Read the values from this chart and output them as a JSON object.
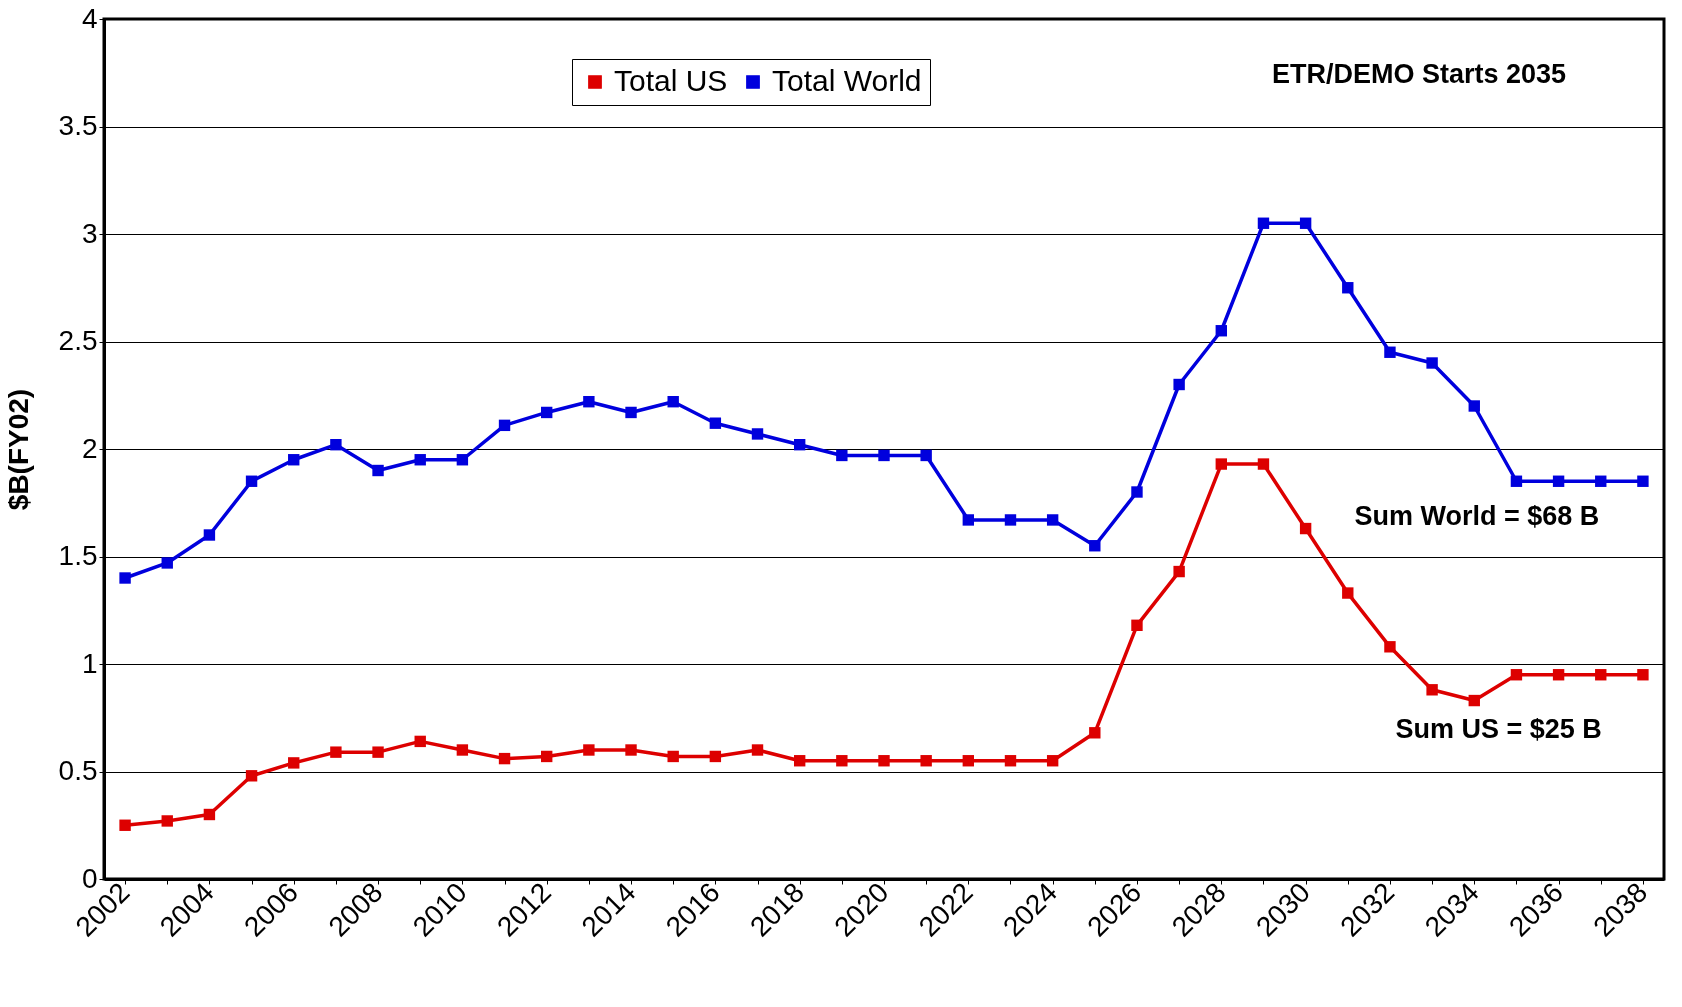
{
  "chart_data": {
    "type": "line",
    "ylabel": "$B(FY02)",
    "categories": [
      "2002",
      null,
      "2004",
      null,
      "2006",
      null,
      "2008",
      null,
      "2010",
      null,
      "2012",
      null,
      "2014",
      null,
      "2016",
      null,
      "2018",
      null,
      "2020",
      null,
      "2022",
      null,
      "2024",
      null,
      "2026",
      null,
      "2028",
      null,
      "2030",
      null,
      "2032",
      null,
      "2034",
      null,
      "2036",
      null,
      "2038"
    ],
    "series": [
      {
        "name": "Total US",
        "color": "#dd0000",
        "values": [
          0.25,
          0.27,
          0.3,
          0.48,
          0.54,
          0.59,
          0.59,
          0.64,
          0.6,
          0.56,
          0.57,
          0.6,
          0.6,
          0.57,
          0.57,
          0.6,
          0.55,
          0.55,
          0.55,
          0.55,
          0.55,
          0.55,
          0.55,
          0.68,
          1.18,
          1.43,
          1.93,
          1.93,
          1.63,
          1.33,
          1.08,
          0.88,
          0.83,
          0.95,
          0.95,
          0.95,
          0.95
        ]
      },
      {
        "name": "Total World",
        "color": "#0000dd",
        "values": [
          1.4,
          1.47,
          1.6,
          1.85,
          1.95,
          2.02,
          1.9,
          1.95,
          1.95,
          2.11,
          2.17,
          2.22,
          2.17,
          2.22,
          2.12,
          2.07,
          2.02,
          1.97,
          1.97,
          1.97,
          1.67,
          1.67,
          1.67,
          1.55,
          1.8,
          2.3,
          2.55,
          3.05,
          3.05,
          2.75,
          2.45,
          2.4,
          2.2,
          1.85,
          1.85,
          1.85,
          1.85
        ]
      }
    ],
    "ylim": [
      0,
      4
    ],
    "yticks": [
      0,
      0.5,
      1,
      1.5,
      2,
      2.5,
      3,
      3.5,
      4
    ],
    "grid": "y",
    "legend": "top",
    "marker": "square",
    "line_style": "solid",
    "annotations": [
      "ETR/DEMO Starts 2035",
      "Sum World = $68 B",
      "Sum US = $25 B"
    ]
  }
}
